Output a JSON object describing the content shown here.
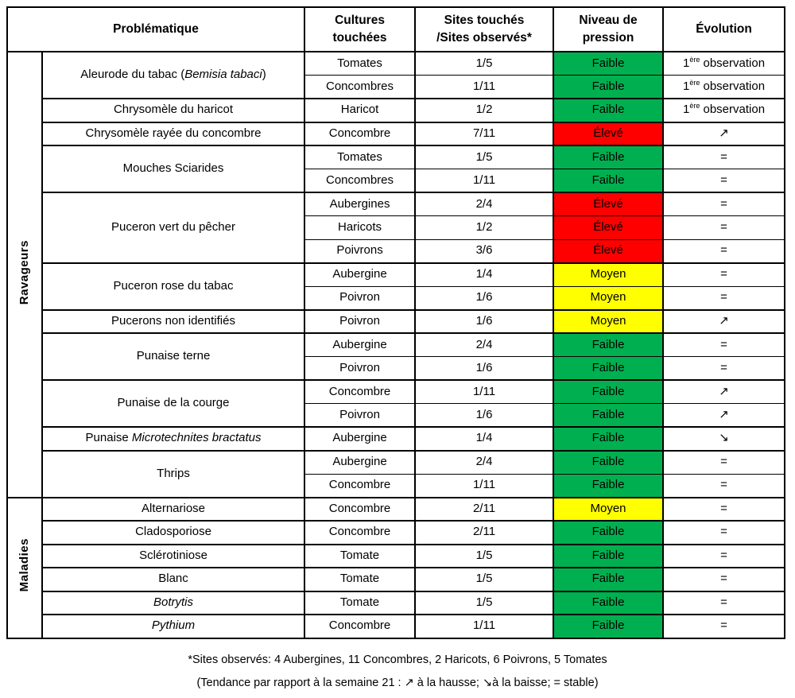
{
  "pressure_colors": {
    "Faible": "#00B050",
    "Moyen": "#FFFF00",
    "Élevé": "#FF0000"
  },
  "headers": {
    "problematique": "Problématique",
    "cultures": [
      "Cultures",
      "touchées"
    ],
    "sites": [
      "Sites touchés",
      "/Sites observés*"
    ],
    "pression": [
      "Niveau de",
      "pression"
    ],
    "evolution": "Évolution"
  },
  "table": {
    "groups": [
      {
        "label": "Ravageurs",
        "problems": [
          {
            "name": [
              {
                "text": "Aleurode du tabac (",
                "italic": false
              },
              {
                "text": "Bemisia tabaci",
                "italic": true
              },
              {
                "text": ")",
                "italic": false
              }
            ],
            "rows": [
              {
                "culture": "Tomates",
                "sites": "1/5",
                "pressure": "Faible",
                "evolution": "1ère observation"
              },
              {
                "culture": "Concombres",
                "sites": "1/11",
                "pressure": "Faible",
                "evolution": "1ère observation"
              }
            ]
          },
          {
            "name": [
              {
                "text": "Chrysomèle du haricot",
                "italic": false
              }
            ],
            "rows": [
              {
                "culture": "Haricot",
                "sites": "1/2",
                "pressure": "Faible",
                "evolution": "1ère observation"
              }
            ]
          },
          {
            "name": [
              {
                "text": "Chrysomèle rayée du concombre",
                "italic": false
              }
            ],
            "rows": [
              {
                "culture": "Concombre",
                "sites": "7/11",
                "pressure": "Élevé",
                "evolution": "↗"
              }
            ]
          },
          {
            "name": [
              {
                "text": "Mouches Sciarides",
                "italic": false
              }
            ],
            "rows": [
              {
                "culture": "Tomates",
                "sites": "1/5",
                "pressure": "Faible",
                "evolution": "="
              },
              {
                "culture": "Concombres",
                "sites": "1/11",
                "pressure": "Faible",
                "evolution": "="
              }
            ]
          },
          {
            "name": [
              {
                "text": "Puceron vert du pêcher",
                "italic": false
              }
            ],
            "rows": [
              {
                "culture": "Aubergines",
                "sites": "2/4",
                "pressure": "Élevé",
                "evolution": "="
              },
              {
                "culture": "Haricots",
                "sites": "1/2",
                "pressure": "Élevé",
                "evolution": "="
              },
              {
                "culture": "Poivrons",
                "sites": "3/6",
                "pressure": "Élevé",
                "evolution": "="
              }
            ]
          },
          {
            "name": [
              {
                "text": "Puceron rose du tabac",
                "italic": false
              }
            ],
            "rows": [
              {
                "culture": "Aubergine",
                "sites": "1/4",
                "pressure": "Moyen",
                "evolution": "="
              },
              {
                "culture": "Poivron",
                "sites": "1/6",
                "pressure": "Moyen",
                "evolution": "="
              }
            ]
          },
          {
            "name": [
              {
                "text": "Pucerons non identifiés",
                "italic": false
              }
            ],
            "rows": [
              {
                "culture": "Poivron",
                "sites": "1/6",
                "pressure": "Moyen",
                "evolution": "↗"
              }
            ]
          },
          {
            "name": [
              {
                "text": "Punaise terne",
                "italic": false
              }
            ],
            "rows": [
              {
                "culture": "Aubergine",
                "sites": "2/4",
                "pressure": "Faible",
                "evolution": "="
              },
              {
                "culture": "Poivron",
                "sites": "1/6",
                "pressure": "Faible",
                "evolution": "="
              }
            ]
          },
          {
            "name": [
              {
                "text": "Punaise de la courge",
                "italic": false
              }
            ],
            "rows": [
              {
                "culture": "Concombre",
                "sites": "1/11",
                "pressure": "Faible",
                "evolution": "↗"
              },
              {
                "culture": "Poivron",
                "sites": "1/6",
                "pressure": "Faible",
                "evolution": "↗"
              }
            ]
          },
          {
            "name": [
              {
                "text": "Punaise ",
                "italic": false
              },
              {
                "text": "Microtechnites bractatus",
                "italic": true
              }
            ],
            "rows": [
              {
                "culture": "Aubergine",
                "sites": "1/4",
                "pressure": "Faible",
                "evolution": "↘"
              }
            ]
          },
          {
            "name": [
              {
                "text": "Thrips",
                "italic": false
              }
            ],
            "rows": [
              {
                "culture": "Aubergine",
                "sites": "2/4",
                "pressure": "Faible",
                "evolution": "="
              },
              {
                "culture": "Concombre",
                "sites": "1/11",
                "pressure": "Faible",
                "evolution": "="
              }
            ]
          }
        ]
      },
      {
        "label": "Maladies",
        "problems": [
          {
            "name": [
              {
                "text": "Alternariose",
                "italic": false
              }
            ],
            "rows": [
              {
                "culture": "Concombre",
                "sites": "2/11",
                "pressure": "Moyen",
                "evolution": "="
              }
            ]
          },
          {
            "name": [
              {
                "text": "Cladosporiose",
                "italic": false
              }
            ],
            "rows": [
              {
                "culture": "Concombre",
                "sites": "2/11",
                "pressure": "Faible",
                "evolution": "="
              }
            ]
          },
          {
            "name": [
              {
                "text": "Sclérotiniose",
                "italic": false
              }
            ],
            "rows": [
              {
                "culture": "Tomate",
                "sites": "1/5",
                "pressure": "Faible",
                "evolution": "="
              }
            ]
          },
          {
            "name": [
              {
                "text": "Blanc",
                "italic": false
              }
            ],
            "rows": [
              {
                "culture": "Tomate",
                "sites": "1/5",
                "pressure": "Faible",
                "evolution": "="
              }
            ]
          },
          {
            "name": [
              {
                "text": "Botrytis",
                "italic": true
              }
            ],
            "rows": [
              {
                "culture": "Tomate",
                "sites": "1/5",
                "pressure": "Faible",
                "evolution": "="
              }
            ]
          },
          {
            "name": [
              {
                "text": "Pythium",
                "italic": true
              }
            ],
            "rows": [
              {
                "culture": "Concombre",
                "sites": "1/11",
                "pressure": "Faible",
                "evolution": "="
              }
            ]
          }
        ]
      }
    ]
  },
  "footnote": {
    "line1": "*Sites observés: 4 Aubergines, 11 Concombres, 2 Haricots, 6 Poivrons, 5 Tomates",
    "line2": "(Tendance par rapport à la semaine 21 : ↗ à la hausse; ↘à la baisse; = stable)"
  }
}
